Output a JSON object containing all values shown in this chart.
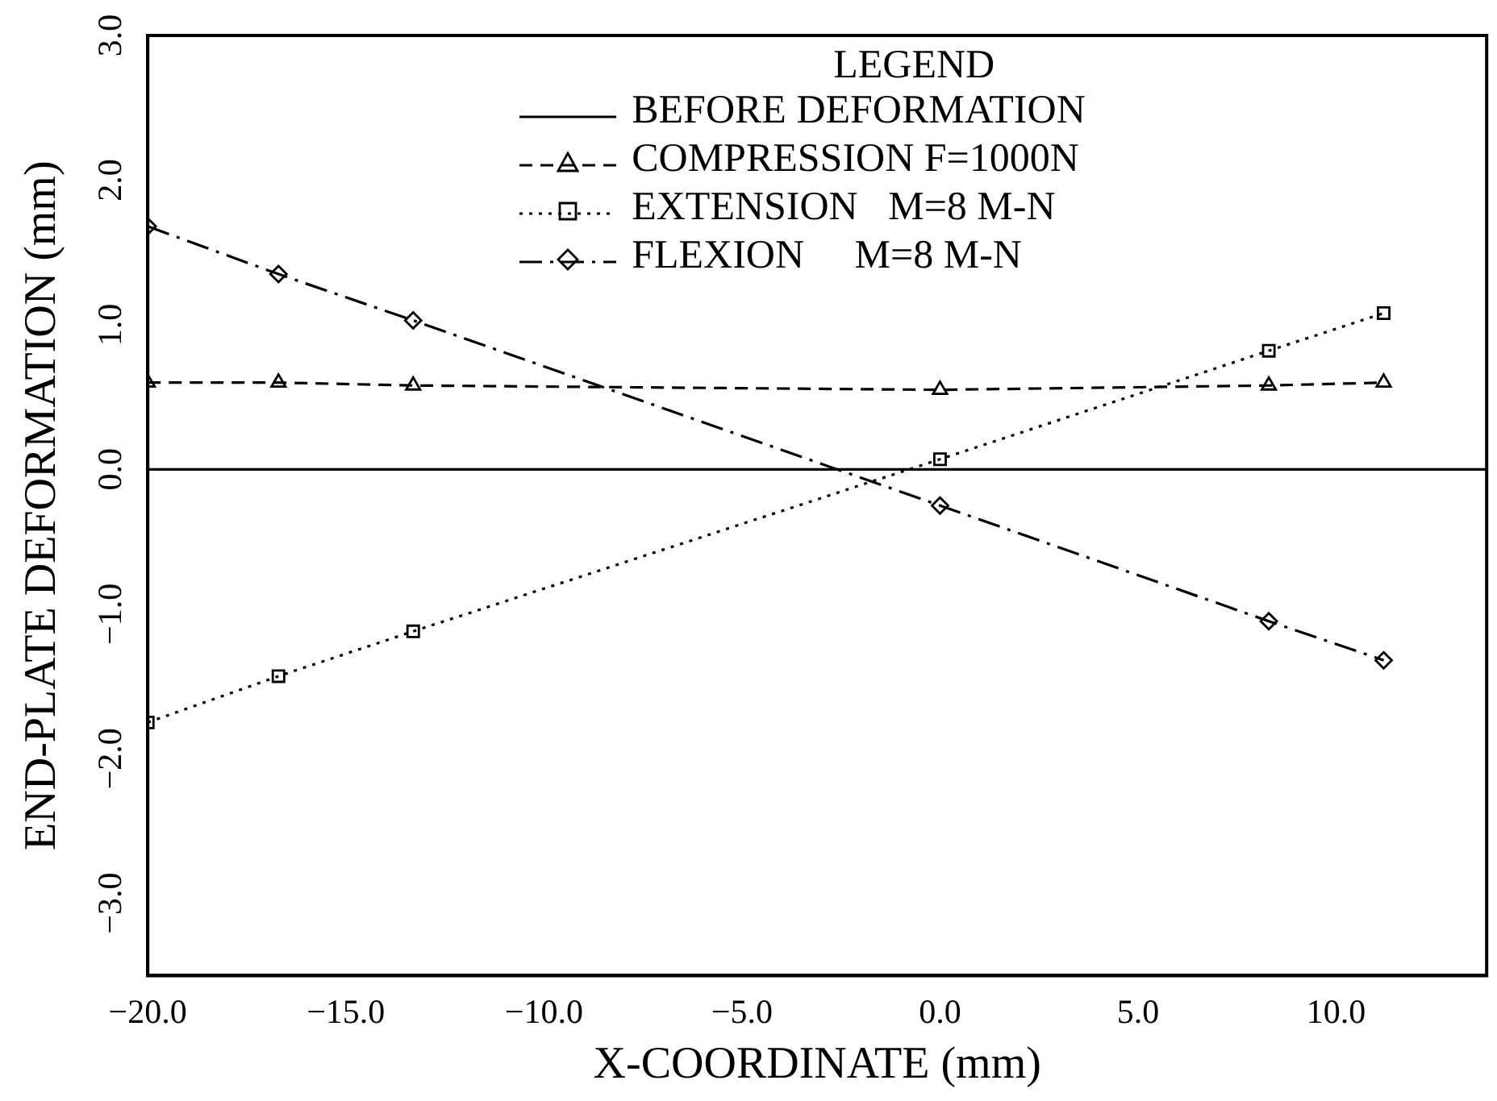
{
  "chart_data": {
    "type": "line",
    "xlabel": "X-COORDINATE (mm)",
    "ylabel": "END-PLATE DEFORMATION (mm)",
    "legend_title": "LEGEND",
    "legend": "top right",
    "grid": false,
    "xlim": [
      -20,
      13.8
    ],
    "xticks": [
      {
        "value": -20,
        "label": "−20.0"
      },
      {
        "value": -15,
        "label": "−15.0"
      },
      {
        "value": -10,
        "label": "−10.0"
      },
      {
        "value": -5,
        "label": "−5.0"
      },
      {
        "value": 0,
        "label": "0.0"
      },
      {
        "value": 5,
        "label": "5.0"
      },
      {
        "value": 10,
        "label": "10.0"
      }
    ],
    "ylim": [
      -3.5,
      3
    ],
    "yticks": [
      {
        "value": -3,
        "label": "−3.0"
      },
      {
        "value": -2,
        "label": "−2.0"
      },
      {
        "value": -1,
        "label": "−1.0"
      },
      {
        "value": 0,
        "label": "0.0"
      },
      {
        "value": 1,
        "label": "1.0"
      },
      {
        "value": 2,
        "label": "2.0"
      },
      {
        "value": 3,
        "label": "3.0"
      }
    ],
    "ref_lines": [
      {
        "axis": "y",
        "value": 0,
        "label": "BEFORE DEFORMATION",
        "color": "#000000",
        "line_style": "solid"
      }
    ],
    "series": [
      {
        "name": "COMPRESSION F=1000N",
        "color": "#000000",
        "marker": "triangle",
        "line_style": "dashed",
        "x": [
          -20,
          -16.7,
          -13.3,
          0,
          8.3,
          11.2
        ],
        "values": [
          0.6,
          0.6,
          0.58,
          0.55,
          0.58,
          0.6
        ]
      },
      {
        "name": "EXTENSION   M=8 M-N",
        "color": "#000000",
        "marker": "square",
        "line_style": "dotted",
        "x": [
          -20,
          -16.7,
          -13.3,
          0,
          8.3,
          11.2
        ],
        "values": [
          -1.75,
          -1.43,
          -1.12,
          0.07,
          0.82,
          1.08
        ]
      },
      {
        "name": "FLEXION     M=8 M-N",
        "color": "#000000",
        "marker": "diamond",
        "line_style": "dashdot",
        "x": [
          -20,
          -16.7,
          -13.3,
          0,
          8.3,
          11.2
        ],
        "values": [
          1.68,
          1.35,
          1.03,
          -0.25,
          -1.05,
          -1.32
        ]
      }
    ]
  }
}
